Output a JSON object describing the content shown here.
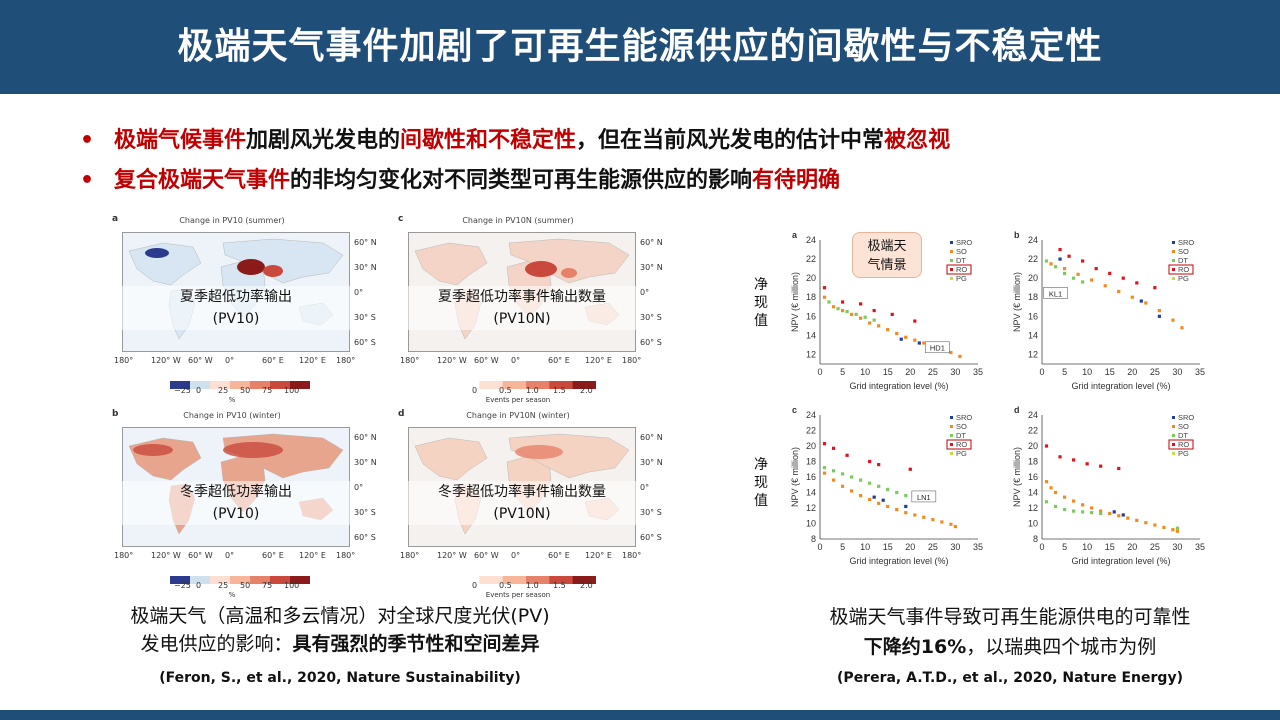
{
  "header": {
    "title": "极端天气事件加剧了可再生能源供应的间歇性与不稳定性"
  },
  "bullets": [
    {
      "marker": "•",
      "parts": [
        {
          "text": "极端气候事件",
          "color": "red"
        },
        {
          "text": "加剧风光发电的",
          "color": "black"
        },
        {
          "text": "间歇性和不稳定性",
          "color": "red"
        },
        {
          "text": "，但在当前风光发电的估计中常",
          "color": "black"
        },
        {
          "text": "被忽视",
          "color": "red"
        }
      ]
    },
    {
      "marker": "•",
      "parts": [
        {
          "text": "复合极端天气事件",
          "color": "red"
        },
        {
          "text": "的非均匀变化对不同类型可再生能源供应的影响",
          "color": "black"
        },
        {
          "text": "有待明确",
          "color": "red"
        }
      ]
    }
  ],
  "maps": [
    {
      "letter": "a",
      "title": "Change in PV10 (summer)",
      "caption_line1": "夏季超低功率输出",
      "caption_line2": "(PV10)",
      "cbar_ticks": [
        "−25",
        "0",
        "25",
        "50",
        "75",
        "100"
      ],
      "cbar_unit": "%"
    },
    {
      "letter": "c",
      "title": "Change in PV10N (summer)",
      "caption_line1": "夏季超低功率事件输出数量",
      "caption_line2": "(PV10N)",
      "cbar_ticks": [
        "0",
        "0.5",
        "1.0",
        "1.5",
        "2.0"
      ],
      "cbar_unit": "Events per season"
    },
    {
      "letter": "b",
      "title": "Change in PV10 (winter)",
      "caption_line1": "冬季超低功率输出",
      "caption_line2": "(PV10)",
      "cbar_ticks": [
        "−25",
        "0",
        "25",
        "50",
        "75",
        "100"
      ],
      "cbar_unit": "%"
    },
    {
      "letter": "d",
      "title": "Change in PV10N (winter)",
      "caption_line1": "冬季超低功率事件输出数量",
      "caption_line2": "(PV10N)",
      "cbar_ticks": [
        "0",
        "0.5",
        "1.0",
        "1.5",
        "2.0"
      ],
      "cbar_unit": "Events per season"
    }
  ],
  "map_lat_labels": [
    "60° N",
    "30° N",
    "0°",
    "30° S",
    "60° S"
  ],
  "map_lon_labels": [
    "180°",
    "120° W",
    "60° W",
    "0°",
    "60° E",
    "120° E",
    "180°"
  ],
  "left_caption": {
    "line1": "极端天气（高温和多云情况）对全球尺度光伏(PV)",
    "line2_prefix": "发电供应的影响：",
    "line2_bold": "具有强烈的季节性和空间差异"
  },
  "left_citation": "(Feron, S., et al., 2020, Nature Sustainability)",
  "right_caption": {
    "line1": "极端天气事件导致可再生能源供电的可靠性",
    "line2_bold": "下降约16%",
    "line2_suffix": "，以瑞典四个城市为例"
  },
  "right_citation": "(Perera, A.T.D.,  et al., 2020, Nature Energy)",
  "callout": {
    "line1": "极端天",
    "line2": "气情景"
  },
  "side_label": [
    "净",
    "现",
    "值"
  ],
  "colors": {
    "header": "#1f4e79",
    "red": "#c00000",
    "SRO": "#1f3fa0",
    "SO": "#f28a1e",
    "DT": "#7acb5a",
    "RO": "#e0121e",
    "PG": "#c9d84a"
  },
  "chart_data": [
    {
      "type": "scatter",
      "panel": "a",
      "xlabel": "Grid integration level (%)",
      "ylabel": "NPV (€ million)",
      "xlim": [
        0,
        35
      ],
      "ylim": [
        11,
        24
      ],
      "xticks": [
        0,
        5,
        10,
        15,
        20,
        25,
        30,
        35
      ],
      "yticks": [
        12,
        14,
        16,
        18,
        20,
        22,
        24
      ],
      "legend": [
        "SRO",
        "SO",
        "DT",
        "RO",
        "PG"
      ],
      "legend_highlight": "RO",
      "annotation": "HD1",
      "series": [
        {
          "name": "RO",
          "x": [
            1,
            5,
            9,
            12,
            16,
            21
          ],
          "y": [
            19,
            17.5,
            17.3,
            16.6,
            16.2,
            15.5
          ]
        },
        {
          "name": "SO",
          "x": [
            1,
            3,
            5,
            7,
            9,
            11,
            13,
            15,
            17,
            19,
            21,
            23,
            25,
            27,
            29,
            31
          ],
          "y": [
            18,
            17,
            16.6,
            16.2,
            15.8,
            15.3,
            15,
            14.6,
            14.2,
            13.8,
            13.5,
            13.2,
            12.8,
            12.5,
            12.2,
            11.8
          ]
        },
        {
          "name": "DT",
          "x": [
            2,
            4,
            6,
            8,
            10,
            12
          ],
          "y": [
            17.5,
            16.8,
            16.5,
            16.2,
            15.9,
            15.6
          ]
        },
        {
          "name": "SRO",
          "x": [
            18,
            22
          ],
          "y": [
            13.6,
            13.2
          ]
        }
      ]
    },
    {
      "type": "scatter",
      "panel": "b",
      "xlabel": "Grid integration level (%)",
      "ylabel": "NPV (€ million)",
      "xlim": [
        0,
        35
      ],
      "ylim": [
        11,
        24
      ],
      "xticks": [
        0,
        5,
        10,
        15,
        20,
        25,
        30,
        35
      ],
      "yticks": [
        12,
        14,
        16,
        18,
        20,
        22,
        24
      ],
      "legend": [
        "SRO",
        "SO",
        "DT",
        "RO",
        "PG"
      ],
      "legend_highlight": "RO",
      "annotation": "KL1",
      "series": [
        {
          "name": "RO",
          "x": [
            4,
            6,
            9,
            12,
            15,
            18,
            21,
            25
          ],
          "y": [
            23,
            22.3,
            21.8,
            21,
            20.5,
            20,
            19.5,
            19
          ]
        },
        {
          "name": "SO",
          "x": [
            2,
            5,
            8,
            11,
            14,
            17,
            20,
            23,
            26,
            29,
            31
          ],
          "y": [
            21.5,
            21,
            20.4,
            19.8,
            19.2,
            18.6,
            18,
            17.4,
            16.6,
            15.6,
            14.8
          ]
        },
        {
          "name": "DT",
          "x": [
            1,
            3,
            5,
            7,
            9
          ],
          "y": [
            21.8,
            21.2,
            20.5,
            20,
            19.6
          ]
        },
        {
          "name": "SRO",
          "x": [
            4,
            22,
            26
          ],
          "y": [
            22,
            17.6,
            16
          ]
        }
      ]
    },
    {
      "type": "scatter",
      "panel": "c",
      "xlabel": "Grid integration level (%)",
      "ylabel": "NPV (€ million)",
      "xlim": [
        0,
        35
      ],
      "ylim": [
        8,
        24
      ],
      "xticks": [
        0,
        5,
        10,
        15,
        20,
        25,
        30,
        35
      ],
      "yticks": [
        8,
        10,
        12,
        14,
        16,
        18,
        20,
        22,
        24
      ],
      "legend": [
        "SRO",
        "SO",
        "DT",
        "RO",
        "PG"
      ],
      "legend_highlight": "RO",
      "annotation": "LN1",
      "series": [
        {
          "name": "RO",
          "x": [
            1,
            3,
            6,
            11,
            13,
            20
          ],
          "y": [
            20.3,
            19.7,
            18.8,
            18,
            17.6,
            17
          ]
        },
        {
          "name": "SO",
          "x": [
            1,
            3,
            5,
            7,
            9,
            11,
            13,
            15,
            17,
            19,
            21,
            23,
            25,
            27,
            29,
            30
          ],
          "y": [
            16.5,
            15.6,
            14.8,
            14.2,
            13.6,
            13.1,
            12.6,
            12.2,
            11.8,
            11.4,
            11.1,
            10.8,
            10.5,
            10.2,
            9.9,
            9.6
          ]
        },
        {
          "name": "DT",
          "x": [
            1,
            3,
            5,
            7,
            9,
            11,
            13,
            15,
            17,
            19,
            21
          ],
          "y": [
            17.2,
            16.8,
            16.4,
            16,
            15.6,
            15.2,
            14.8,
            14.4,
            14,
            13.6,
            13.2
          ]
        },
        {
          "name": "SRO",
          "x": [
            12,
            14,
            19
          ],
          "y": [
            13.4,
            13,
            12.2
          ]
        }
      ]
    },
    {
      "type": "scatter",
      "panel": "d",
      "xlabel": "Grid integration level (%)",
      "ylabel": "NPV (€ million)",
      "xlim": [
        0,
        35
      ],
      "ylim": [
        8,
        24
      ],
      "xticks": [
        0,
        5,
        10,
        15,
        20,
        25,
        30,
        35
      ],
      "yticks": [
        8,
        10,
        12,
        14,
        16,
        18,
        20,
        22,
        24
      ],
      "legend": [
        "SRO",
        "SO",
        "DT",
        "RO",
        "PG"
      ],
      "legend_highlight": "RO",
      "annotation": "",
      "series": [
        {
          "name": "RO",
          "x": [
            1,
            4,
            7,
            10,
            13,
            17
          ],
          "y": [
            20,
            18.6,
            18.2,
            17.7,
            17.4,
            17.1
          ]
        },
        {
          "name": "SO",
          "x": [
            1,
            2,
            3,
            5,
            7,
            9,
            11,
            13,
            15,
            17,
            19,
            21,
            23,
            25,
            27,
            29,
            30
          ],
          "y": [
            15.4,
            14.6,
            14,
            13.4,
            12.9,
            12.4,
            12,
            11.6,
            11.3,
            11,
            10.7,
            10.4,
            10.1,
            9.8,
            9.5,
            9.2,
            9
          ]
        },
        {
          "name": "DT",
          "x": [
            1,
            3,
            5,
            7,
            9,
            11,
            13,
            30
          ],
          "y": [
            12.8,
            12.2,
            11.8,
            11.6,
            11.5,
            11.4,
            11.3,
            9.4
          ]
        },
        {
          "name": "SRO",
          "x": [
            16,
            18
          ],
          "y": [
            11.5,
            11.1
          ]
        }
      ]
    }
  ]
}
